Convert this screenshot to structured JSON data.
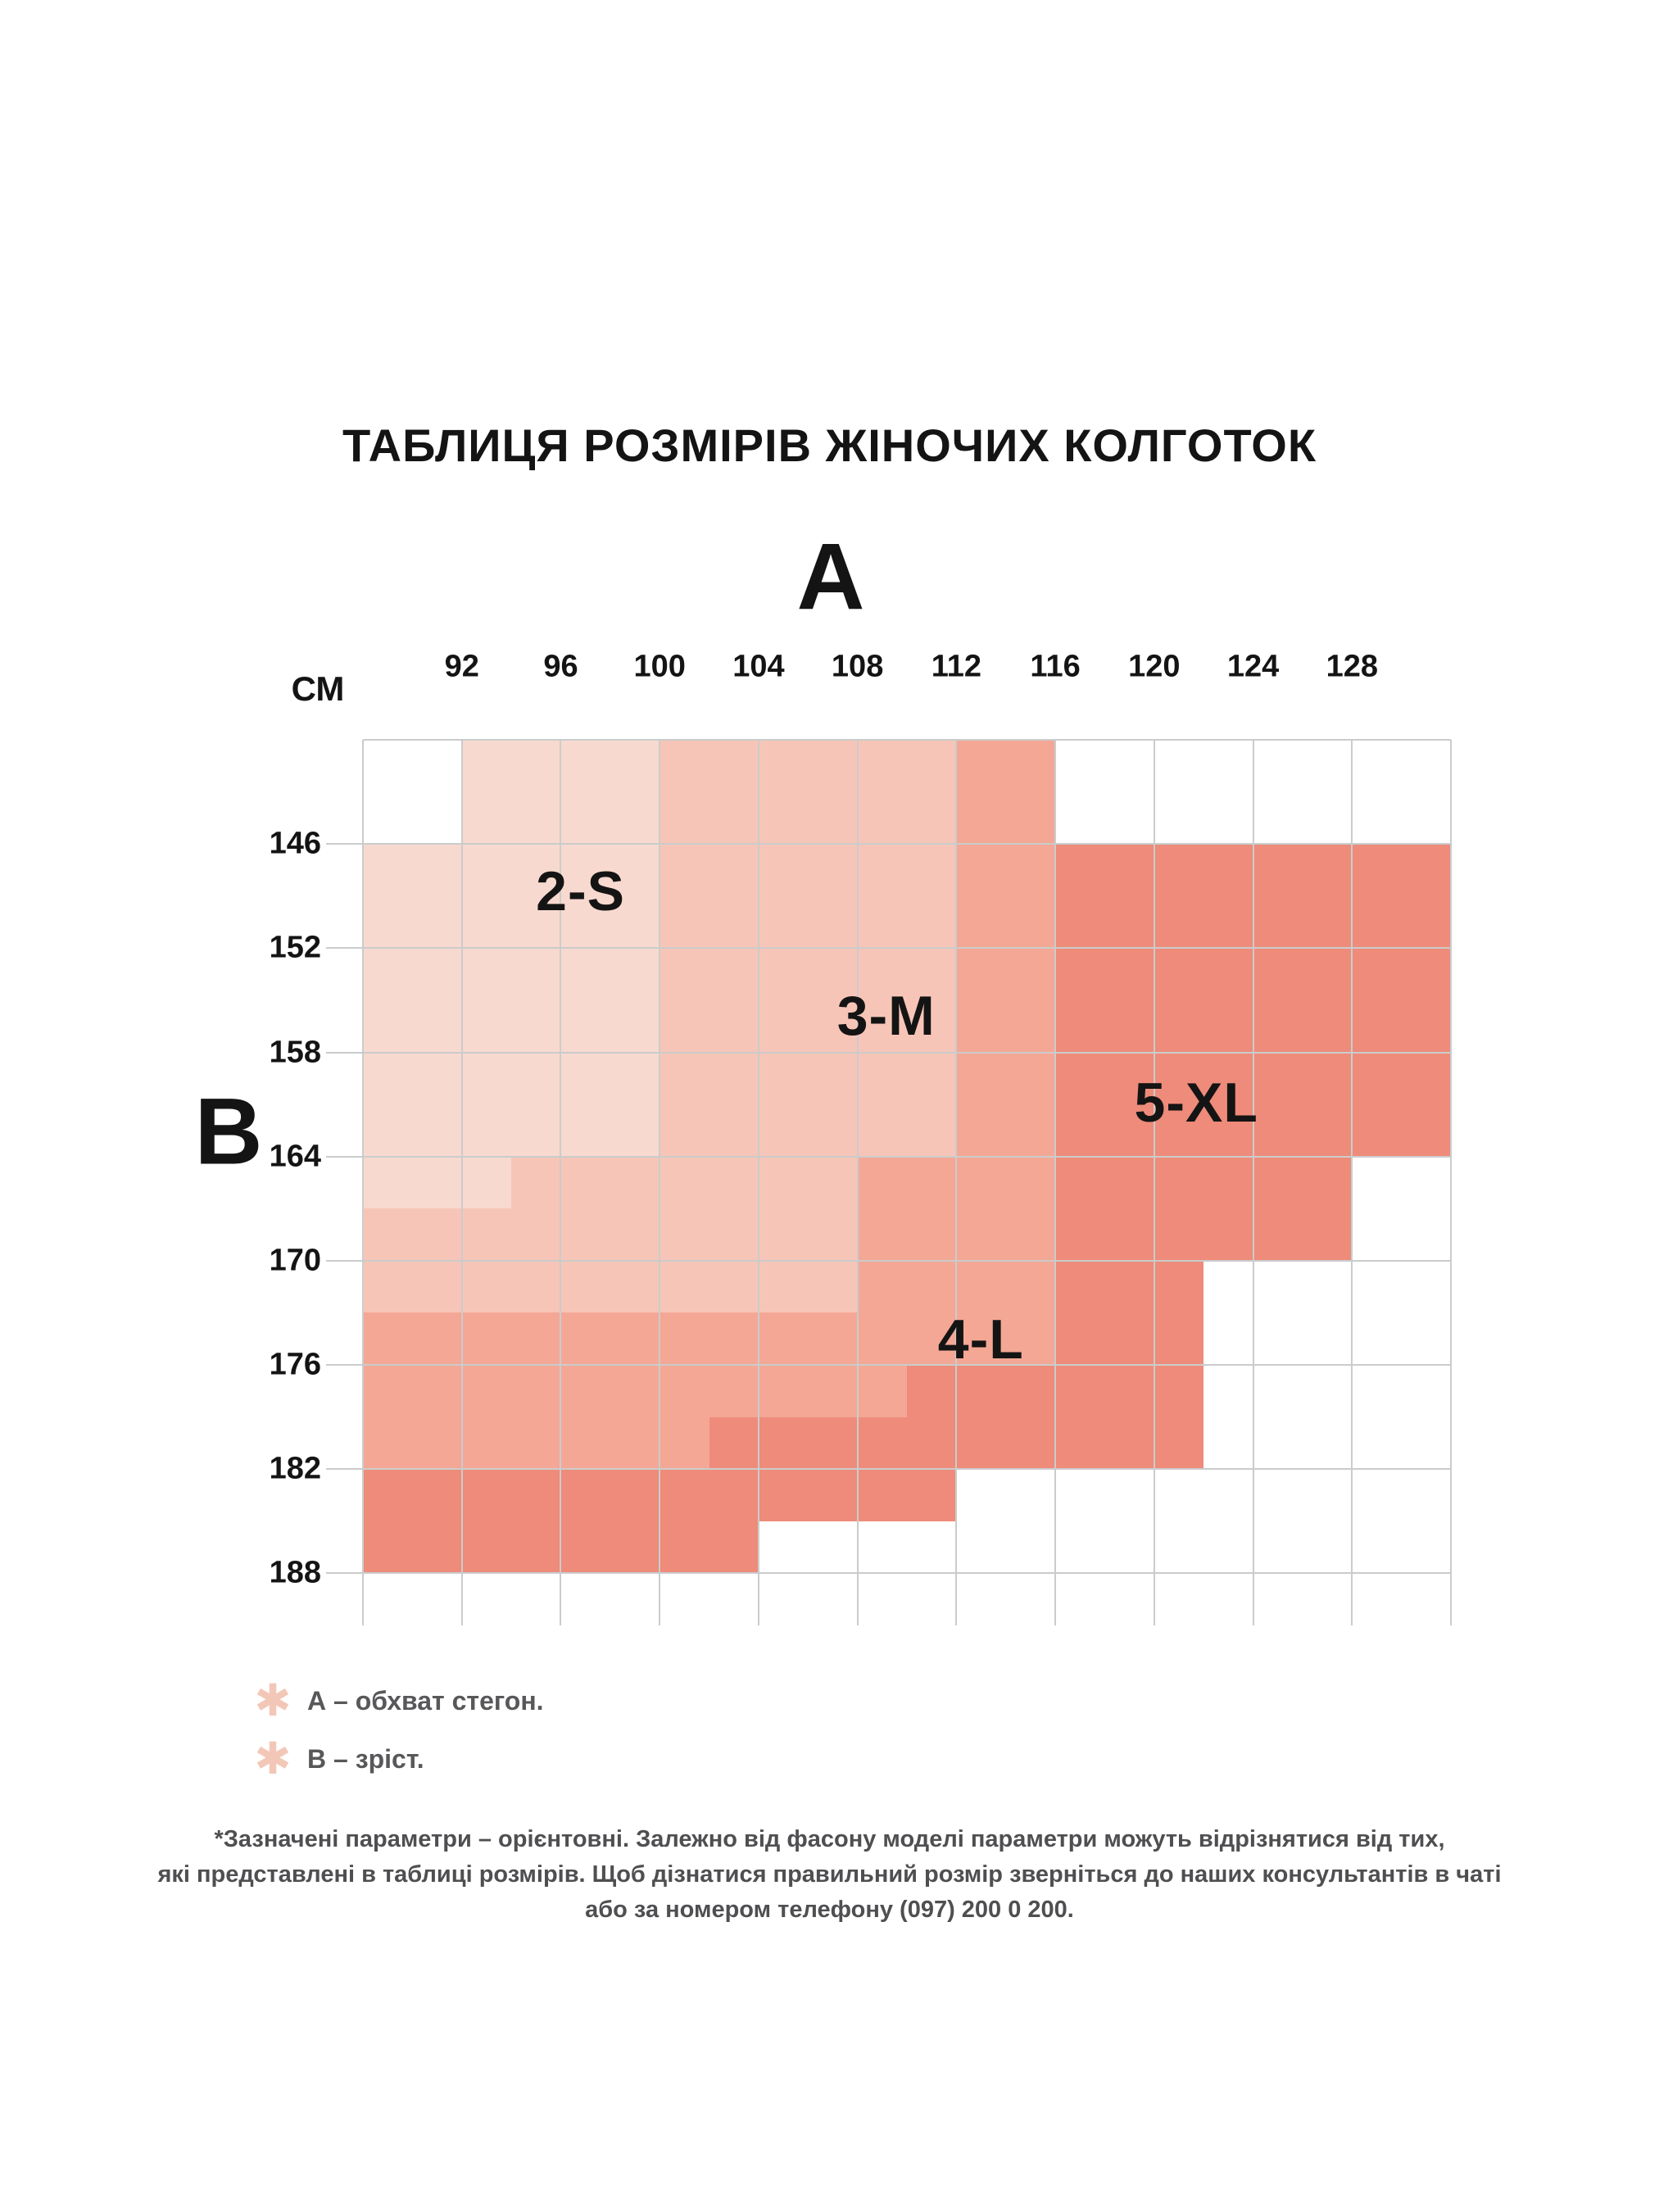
{
  "title": "ТАБЛИЦЯ РОЗМІРІВ ЖІНОЧИХ КОЛГОТОК",
  "axes": {
    "a_letter": "А",
    "b_letter": "В",
    "unit_label": "СМ"
  },
  "chart_data": {
    "type": "heatmap",
    "title": "ТАБЛИЦЯ РОЗМІРІВ ЖІНОЧИХ КОЛГОТОК",
    "xlabel": "А – обхват стегон (см)",
    "ylabel": "В – зріст (см)",
    "x_ticks": [
      "92",
      "96",
      "100",
      "104",
      "108",
      "112",
      "116",
      "120",
      "124",
      "128"
    ],
    "y_ticks": [
      "146",
      "152",
      "158",
      "164",
      "170",
      "176",
      "182",
      "188"
    ],
    "grid": {
      "columns": 11,
      "row_units": 8.5,
      "half_cols": 22,
      "half_rows": 17,
      "gridline_color": "#cacccc"
    },
    "palette": {
      "0": "none",
      "1": "#f8d9cf",
      "2": "#f7c5b7",
      "3": "#f4a795",
      "4": "#ee8b7a"
    },
    "series": [
      {
        "name": "2-S",
        "cell_value": "1",
        "color": "#f8d9cf",
        "label_x_pct": 20.0,
        "label_y_pct": 17.1
      },
      {
        "name": "3-M",
        "cell_value": "2",
        "color": "#f7c5b7",
        "label_x_pct": 48.1,
        "label_y_pct": 31.2
      },
      {
        "name": "4-L",
        "cell_value": "3",
        "color": "#f4a795",
        "label_x_pct": 56.8,
        "label_y_pct": 67.7
      },
      {
        "name": "5-XL",
        "cell_value": "4",
        "color": "#ee8b7a",
        "label_x_pct": 76.6,
        "label_y_pct": 41.0
      }
    ],
    "cell_map": [
      "0011112222223300000000",
      "0011112222223300000000",
      "1111112222223344444444",
      "1111112222223344444444",
      "1111112222223344444444",
      "1111112222223344444444",
      "1111112222223344444444",
      "1111112222223344444444",
      "1112222222333344444400",
      "2222222222333344444400",
      "2222222222333344400000",
      "3333333333333344400000",
      "3333333333344444400000",
      "3333333444444444400000",
      "4444444444440000000000",
      "4444444400000000000000",
      "0000000000000000000000"
    ]
  },
  "legend": {
    "items": [
      {
        "icon": "asterisk-icon",
        "glyph": "✱",
        "label": "А – обхват стегон."
      },
      {
        "icon": "asterisk-icon",
        "glyph": "✱",
        "label": "В – зріст."
      }
    ]
  },
  "footnote": {
    "lines": [
      "*Зазначені параметри – орієнтовні. Залежно від фасону моделі параметри можуть відрізнятися від тих,",
      "які представлені в таблиці розмірів. Щоб дізнатися правильний розмір зверніться до наших консультантів в чаті",
      "або за номером телефону (097) 200 0 200."
    ]
  }
}
